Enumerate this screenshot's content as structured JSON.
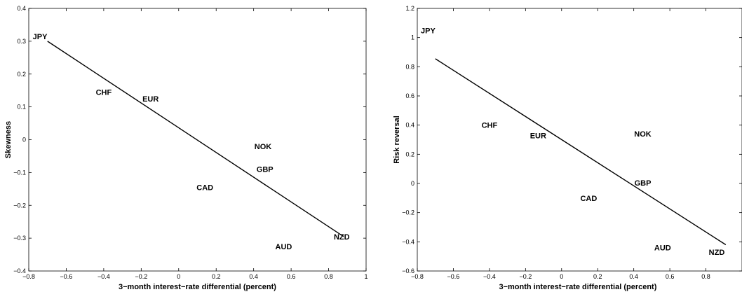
{
  "chart_data": [
    {
      "type": "scatter",
      "title": "",
      "xlabel": "3−month interest−rate differential (percent)",
      "ylabel": "Skewness",
      "xlim": [
        -0.8,
        1
      ],
      "ylim": [
        -0.4,
        0.4
      ],
      "xticks": [
        -0.8,
        -0.6,
        -0.4,
        -0.2,
        0,
        0.2,
        0.4,
        0.6,
        0.8,
        1
      ],
      "xtick_labels": [
        "−0.8",
        "−0.6",
        "−0.4",
        "−0.2",
        "0",
        "0.2",
        "0.4",
        "0.6",
        "0.8",
        "1"
      ],
      "yticks": [
        -0.4,
        -0.3,
        -0.2,
        -0.1,
        0,
        0.1,
        0.2,
        0.3,
        0.4
      ],
      "ytick_labels": [
        "−0.4",
        "−0.3",
        "−0.2",
        "−0.1",
        "0",
        "0.1",
        "0.2",
        "0.3",
        "0.4"
      ],
      "grid": false,
      "points": [
        {
          "label": "JPY",
          "x": -0.74,
          "y": 0.315
        },
        {
          "label": "CHF",
          "x": -0.4,
          "y": 0.145
        },
        {
          "label": "EUR",
          "x": -0.15,
          "y": 0.125
        },
        {
          "label": "NOK",
          "x": 0.45,
          "y": -0.02
        },
        {
          "label": "GBP",
          "x": 0.46,
          "y": -0.09
        },
        {
          "label": "CAD",
          "x": 0.14,
          "y": -0.145
        },
        {
          "label": "AUD",
          "x": 0.56,
          "y": -0.325
        },
        {
          "label": "NZD",
          "x": 0.87,
          "y": -0.295
        }
      ],
      "fit_line": {
        "x": [
          -0.7,
          0.88
        ],
        "y": [
          0.3,
          -0.295
        ]
      }
    },
    {
      "type": "scatter",
      "title": "",
      "xlabel": "3−month interest−rate differential (percent)",
      "ylabel": "Risk reversal",
      "xlim": [
        -0.8,
        1
      ],
      "ylim": [
        -0.6,
        1.2
      ],
      "xticks": [
        -0.8,
        -0.6,
        -0.4,
        -0.2,
        0,
        0.2,
        0.4,
        0.6,
        0.8
      ],
      "xtick_labels": [
        "−0.8",
        "−0.6",
        "−0.4",
        "−0.2",
        "0",
        "0.2",
        "0.4",
        "0.6",
        "0.8"
      ],
      "yticks": [
        -0.6,
        -0.4,
        -0.2,
        0,
        0.2,
        0.4,
        0.6,
        0.8,
        1,
        1.2
      ],
      "ytick_labels": [
        "−0.6",
        "−0.4",
        "−0.2",
        "0",
        "0.2",
        "0.4",
        "0.6",
        "0.8",
        "1",
        "1.2"
      ],
      "grid": false,
      "points": [
        {
          "label": "JPY",
          "x": -0.74,
          "y": 1.05
        },
        {
          "label": "CHF",
          "x": -0.4,
          "y": 0.4
        },
        {
          "label": "EUR",
          "x": -0.13,
          "y": 0.33
        },
        {
          "label": "NOK",
          "x": 0.45,
          "y": 0.34
        },
        {
          "label": "GBP",
          "x": 0.45,
          "y": 0.005
        },
        {
          "label": "CAD",
          "x": 0.15,
          "y": -0.1
        },
        {
          "label": "AUD",
          "x": 0.56,
          "y": -0.44
        },
        {
          "label": "NZD",
          "x": 0.86,
          "y": -0.47
        }
      ],
      "fit_line": {
        "x": [
          -0.7,
          0.91
        ],
        "y": [
          0.855,
          -0.42
        ]
      }
    }
  ]
}
